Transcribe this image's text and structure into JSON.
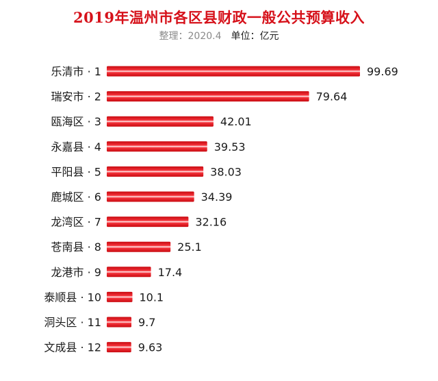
{
  "chart_data": {
    "type": "bar",
    "orientation": "horizontal",
    "title": "2019年温州市各区县财政一般公共预算收入",
    "subtitle_date": "整理：2020.4",
    "subtitle_unit": "单位：亿元",
    "categories": [
      "乐清市 · 1",
      "瑞安市 · 2",
      "瓯海区 · 3",
      "永嘉县 · 4",
      "平阳县 · 5",
      "鹿城区 · 6",
      "龙湾区 · 7",
      "苍南县 · 8",
      "龙港市 · 9",
      "泰顺县 · 10",
      "洞头区 · 11",
      "文成县 · 12"
    ],
    "values": [
      99.69,
      79.64,
      42.01,
      39.53,
      38.03,
      34.39,
      32.16,
      25.1,
      17.4,
      10.1,
      9.7,
      9.63
    ],
    "value_labels": [
      "99.69",
      "79.64",
      "42.01",
      "39.53",
      "38.03",
      "34.39",
      "32.16",
      "25.1",
      "17.4",
      "10.1",
      "9.7",
      "9.63"
    ],
    "xlim": [
      0,
      99.69
    ],
    "grid": false,
    "bar_color": "#e8141b",
    "bar_highlight": "#ffffff",
    "title_color": "#d6111a"
  }
}
